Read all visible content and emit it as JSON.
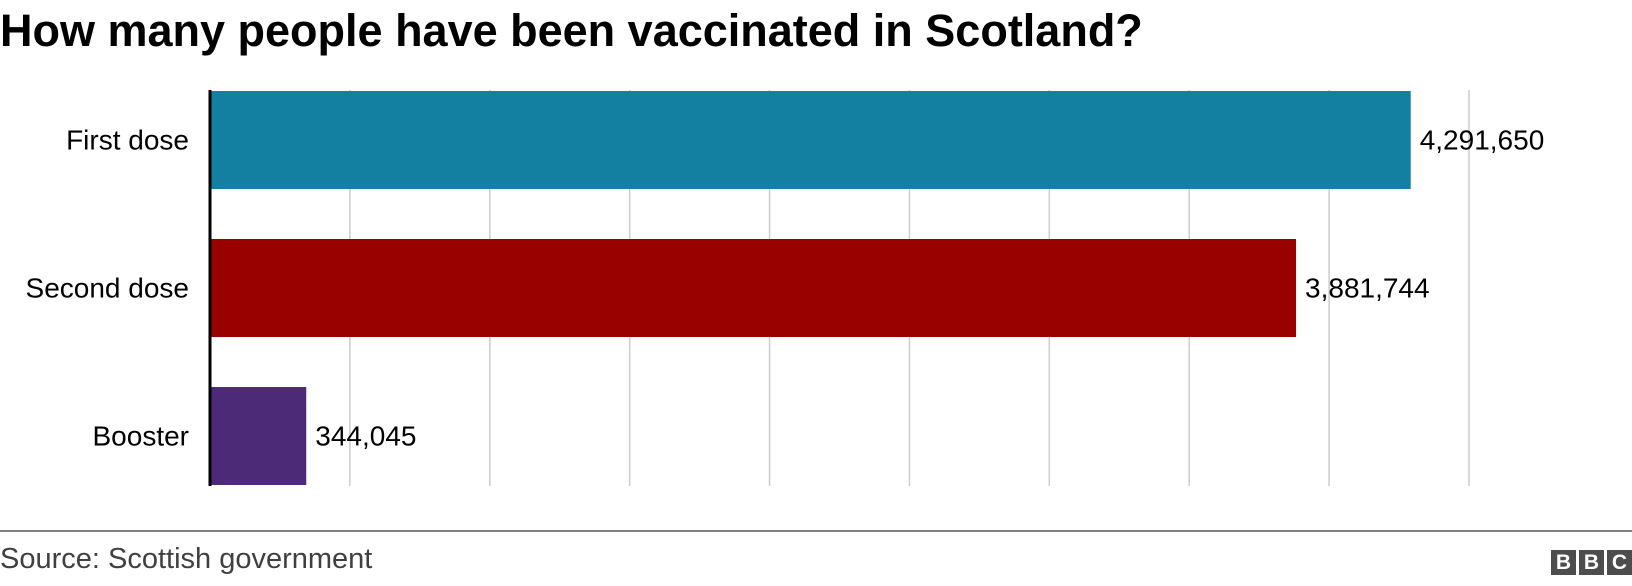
{
  "chart_data": {
    "type": "bar",
    "orientation": "horizontal",
    "title": "How many people have been vaccinated in Scotland?",
    "categories": [
      "First dose",
      "Second dose",
      "Booster"
    ],
    "values": [
      4291650,
      3881744,
      344045
    ],
    "value_labels": [
      "4,291,650",
      "3,881,744",
      "344,045"
    ],
    "colors": [
      "#1380A1",
      "#990000",
      "#4D2A78"
    ],
    "xlim": [
      0,
      4500000
    ],
    "grid": true,
    "legend": false,
    "xlabel": "",
    "ylabel": ""
  },
  "footer": {
    "source": "Source: Scottish government",
    "logo_letters": [
      "B",
      "B",
      "C"
    ]
  }
}
